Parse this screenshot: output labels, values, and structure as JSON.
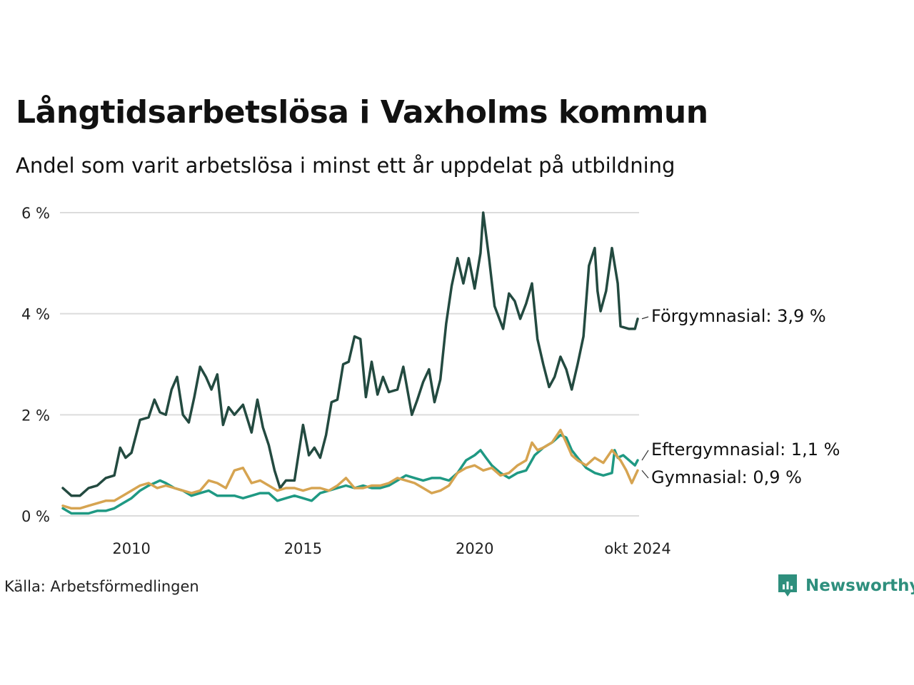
{
  "title": "Långtidsarbetslösa i Vaxholms kommun",
  "subtitle": "Andel som varit arbetslösa i minst ett år uppdelat på utbildning",
  "source": "Källa: Arbetsförmedlingen",
  "brand": {
    "name": "Newsworthy",
    "color": "#2e8f7d",
    "icon": "bar-chart-icon"
  },
  "chart_data": {
    "type": "line",
    "title": "Långtidsarbetslösa i Vaxholms kommun",
    "xlabel": "",
    "ylabel": "",
    "xlim": [
      2008.0,
      2024.75
    ],
    "ylim": [
      0,
      6
    ],
    "y_ticks": [
      {
        "value": 0,
        "label": "0 %"
      },
      {
        "value": 2,
        "label": "2 %"
      },
      {
        "value": 4,
        "label": "4 %"
      },
      {
        "value": 6,
        "label": "6 %"
      }
    ],
    "x_ticks": [
      {
        "value": 2010,
        "label": "2010"
      },
      {
        "value": 2015,
        "label": "2015"
      },
      {
        "value": 2020,
        "label": "2020"
      },
      {
        "value": 2024.75,
        "label": "okt 2024"
      }
    ],
    "grid": "horizontal",
    "series": [
      {
        "name": "Förgymnasial",
        "end_label": "Förgymnasial: 3,9 %",
        "color": "#234a40",
        "points": [
          [
            2008.0,
            0.55
          ],
          [
            2008.25,
            0.4
          ],
          [
            2008.5,
            0.4
          ],
          [
            2008.75,
            0.55
          ],
          [
            2009.0,
            0.6
          ],
          [
            2009.25,
            0.75
          ],
          [
            2009.5,
            0.8
          ],
          [
            2009.67,
            1.35
          ],
          [
            2009.83,
            1.15
          ],
          [
            2010.0,
            1.25
          ],
          [
            2010.25,
            1.9
          ],
          [
            2010.5,
            1.95
          ],
          [
            2010.67,
            2.3
          ],
          [
            2010.83,
            2.05
          ],
          [
            2011.0,
            2.0
          ],
          [
            2011.17,
            2.5
          ],
          [
            2011.33,
            2.75
          ],
          [
            2011.5,
            2.0
          ],
          [
            2011.67,
            1.85
          ],
          [
            2011.83,
            2.35
          ],
          [
            2012.0,
            2.95
          ],
          [
            2012.17,
            2.75
          ],
          [
            2012.33,
            2.5
          ],
          [
            2012.5,
            2.8
          ],
          [
            2012.67,
            1.8
          ],
          [
            2012.83,
            2.15
          ],
          [
            2013.0,
            2.0
          ],
          [
            2013.25,
            2.2
          ],
          [
            2013.5,
            1.65
          ],
          [
            2013.67,
            2.3
          ],
          [
            2013.83,
            1.75
          ],
          [
            2014.0,
            1.4
          ],
          [
            2014.17,
            0.9
          ],
          [
            2014.33,
            0.55
          ],
          [
            2014.5,
            0.7
          ],
          [
            2014.75,
            0.7
          ],
          [
            2015.0,
            1.8
          ],
          [
            2015.17,
            1.2
          ],
          [
            2015.33,
            1.35
          ],
          [
            2015.5,
            1.15
          ],
          [
            2015.67,
            1.6
          ],
          [
            2015.83,
            2.25
          ],
          [
            2016.0,
            2.3
          ],
          [
            2016.17,
            3.0
          ],
          [
            2016.33,
            3.05
          ],
          [
            2016.5,
            3.55
          ],
          [
            2016.67,
            3.5
          ],
          [
            2016.83,
            2.35
          ],
          [
            2017.0,
            3.05
          ],
          [
            2017.17,
            2.4
          ],
          [
            2017.33,
            2.75
          ],
          [
            2017.5,
            2.45
          ],
          [
            2017.75,
            2.5
          ],
          [
            2017.92,
            2.95
          ],
          [
            2018.17,
            2.0
          ],
          [
            2018.33,
            2.3
          ],
          [
            2018.5,
            2.65
          ],
          [
            2018.67,
            2.9
          ],
          [
            2018.83,
            2.25
          ],
          [
            2019.0,
            2.7
          ],
          [
            2019.17,
            3.8
          ],
          [
            2019.33,
            4.55
          ],
          [
            2019.5,
            5.1
          ],
          [
            2019.67,
            4.6
          ],
          [
            2019.83,
            5.1
          ],
          [
            2020.0,
            4.5
          ],
          [
            2020.17,
            5.2
          ],
          [
            2020.25,
            6.0
          ],
          [
            2020.42,
            5.1
          ],
          [
            2020.58,
            4.15
          ],
          [
            2020.83,
            3.7
          ],
          [
            2021.0,
            4.4
          ],
          [
            2021.17,
            4.25
          ],
          [
            2021.33,
            3.9
          ],
          [
            2021.5,
            4.2
          ],
          [
            2021.67,
            4.6
          ],
          [
            2021.83,
            3.5
          ],
          [
            2022.0,
            3.0
          ],
          [
            2022.17,
            2.55
          ],
          [
            2022.33,
            2.75
          ],
          [
            2022.5,
            3.15
          ],
          [
            2022.67,
            2.9
          ],
          [
            2022.83,
            2.5
          ],
          [
            2023.0,
            3.0
          ],
          [
            2023.17,
            3.55
          ],
          [
            2023.33,
            4.95
          ],
          [
            2023.5,
            5.3
          ],
          [
            2023.58,
            4.45
          ],
          [
            2023.67,
            4.05
          ],
          [
            2023.83,
            4.45
          ],
          [
            2024.0,
            5.3
          ],
          [
            2024.17,
            4.6
          ],
          [
            2024.25,
            3.75
          ],
          [
            2024.5,
            3.7
          ],
          [
            2024.67,
            3.7
          ],
          [
            2024.75,
            3.9
          ]
        ]
      },
      {
        "name": "Eftergymnasial",
        "end_label": "Eftergymnasial: 1,1 %",
        "color": "#1f9983",
        "points": [
          [
            2008.0,
            0.15
          ],
          [
            2008.25,
            0.05
          ],
          [
            2008.5,
            0.05
          ],
          [
            2008.75,
            0.05
          ],
          [
            2009.0,
            0.1
          ],
          [
            2009.25,
            0.1
          ],
          [
            2009.5,
            0.15
          ],
          [
            2009.75,
            0.25
          ],
          [
            2010.0,
            0.35
          ],
          [
            2010.25,
            0.5
          ],
          [
            2010.5,
            0.6
          ],
          [
            2010.67,
            0.65
          ],
          [
            2010.83,
            0.7
          ],
          [
            2011.0,
            0.65
          ],
          [
            2011.25,
            0.55
          ],
          [
            2011.5,
            0.5
          ],
          [
            2011.75,
            0.4
          ],
          [
            2012.0,
            0.45
          ],
          [
            2012.25,
            0.5
          ],
          [
            2012.5,
            0.4
          ],
          [
            2012.75,
            0.4
          ],
          [
            2013.0,
            0.4
          ],
          [
            2013.25,
            0.35
          ],
          [
            2013.5,
            0.4
          ],
          [
            2013.75,
            0.45
          ],
          [
            2014.0,
            0.45
          ],
          [
            2014.25,
            0.3
          ],
          [
            2014.5,
            0.35
          ],
          [
            2014.75,
            0.4
          ],
          [
            2015.0,
            0.35
          ],
          [
            2015.25,
            0.3
          ],
          [
            2015.5,
            0.45
          ],
          [
            2015.75,
            0.5
          ],
          [
            2016.0,
            0.55
          ],
          [
            2016.25,
            0.6
          ],
          [
            2016.5,
            0.55
          ],
          [
            2016.75,
            0.6
          ],
          [
            2017.0,
            0.55
          ],
          [
            2017.25,
            0.55
          ],
          [
            2017.5,
            0.6
          ],
          [
            2017.75,
            0.7
          ],
          [
            2018.0,
            0.8
          ],
          [
            2018.25,
            0.75
          ],
          [
            2018.5,
            0.7
          ],
          [
            2018.75,
            0.75
          ],
          [
            2019.0,
            0.75
          ],
          [
            2019.25,
            0.7
          ],
          [
            2019.5,
            0.85
          ],
          [
            2019.75,
            1.1
          ],
          [
            2020.0,
            1.2
          ],
          [
            2020.17,
            1.3
          ],
          [
            2020.33,
            1.15
          ],
          [
            2020.5,
            1.0
          ],
          [
            2020.75,
            0.85
          ],
          [
            2021.0,
            0.75
          ],
          [
            2021.25,
            0.85
          ],
          [
            2021.5,
            0.9
          ],
          [
            2021.75,
            1.2
          ],
          [
            2022.0,
            1.35
          ],
          [
            2022.25,
            1.45
          ],
          [
            2022.5,
            1.6
          ],
          [
            2022.67,
            1.55
          ],
          [
            2022.83,
            1.3
          ],
          [
            2023.0,
            1.15
          ],
          [
            2023.25,
            0.95
          ],
          [
            2023.5,
            0.85
          ],
          [
            2023.75,
            0.8
          ],
          [
            2024.0,
            0.85
          ],
          [
            2024.08,
            1.3
          ],
          [
            2024.17,
            1.15
          ],
          [
            2024.33,
            1.2
          ],
          [
            2024.5,
            1.1
          ],
          [
            2024.67,
            1.0
          ],
          [
            2024.75,
            1.1
          ]
        ]
      },
      {
        "name": "Gymnasial",
        "end_label": "Gymnasial: 0,9 %",
        "color": "#d6a451",
        "points": [
          [
            2008.0,
            0.2
          ],
          [
            2008.25,
            0.15
          ],
          [
            2008.5,
            0.15
          ],
          [
            2008.75,
            0.2
          ],
          [
            2009.0,
            0.25
          ],
          [
            2009.25,
            0.3
          ],
          [
            2009.5,
            0.3
          ],
          [
            2009.75,
            0.4
          ],
          [
            2010.0,
            0.5
          ],
          [
            2010.25,
            0.6
          ],
          [
            2010.5,
            0.65
          ],
          [
            2010.75,
            0.55
          ],
          [
            2011.0,
            0.6
          ],
          [
            2011.25,
            0.55
          ],
          [
            2011.5,
            0.5
          ],
          [
            2011.75,
            0.45
          ],
          [
            2012.0,
            0.5
          ],
          [
            2012.25,
            0.7
          ],
          [
            2012.5,
            0.65
          ],
          [
            2012.75,
            0.55
          ],
          [
            2013.0,
            0.9
          ],
          [
            2013.25,
            0.95
          ],
          [
            2013.5,
            0.65
          ],
          [
            2013.75,
            0.7
          ],
          [
            2014.0,
            0.6
          ],
          [
            2014.25,
            0.5
          ],
          [
            2014.5,
            0.55
          ],
          [
            2014.75,
            0.55
          ],
          [
            2015.0,
            0.5
          ],
          [
            2015.25,
            0.55
          ],
          [
            2015.5,
            0.55
          ],
          [
            2015.75,
            0.5
          ],
          [
            2016.0,
            0.6
          ],
          [
            2016.25,
            0.75
          ],
          [
            2016.5,
            0.55
          ],
          [
            2016.75,
            0.55
          ],
          [
            2017.0,
            0.6
          ],
          [
            2017.25,
            0.6
          ],
          [
            2017.5,
            0.65
          ],
          [
            2017.75,
            0.75
          ],
          [
            2018.0,
            0.7
          ],
          [
            2018.25,
            0.65
          ],
          [
            2018.5,
            0.55
          ],
          [
            2018.75,
            0.45
          ],
          [
            2019.0,
            0.5
          ],
          [
            2019.25,
            0.6
          ],
          [
            2019.5,
            0.85
          ],
          [
            2019.75,
            0.95
          ],
          [
            2020.0,
            1.0
          ],
          [
            2020.25,
            0.9
          ],
          [
            2020.5,
            0.95
          ],
          [
            2020.75,
            0.8
          ],
          [
            2021.0,
            0.85
          ],
          [
            2021.25,
            1.0
          ],
          [
            2021.5,
            1.1
          ],
          [
            2021.67,
            1.45
          ],
          [
            2021.83,
            1.3
          ],
          [
            2022.0,
            1.35
          ],
          [
            2022.25,
            1.45
          ],
          [
            2022.5,
            1.7
          ],
          [
            2022.67,
            1.45
          ],
          [
            2022.83,
            1.2
          ],
          [
            2023.0,
            1.1
          ],
          [
            2023.25,
            1.0
          ],
          [
            2023.5,
            1.15
          ],
          [
            2023.75,
            1.05
          ],
          [
            2024.0,
            1.3
          ],
          [
            2024.25,
            1.1
          ],
          [
            2024.42,
            0.9
          ],
          [
            2024.58,
            0.65
          ],
          [
            2024.75,
            0.9
          ]
        ]
      }
    ]
  }
}
